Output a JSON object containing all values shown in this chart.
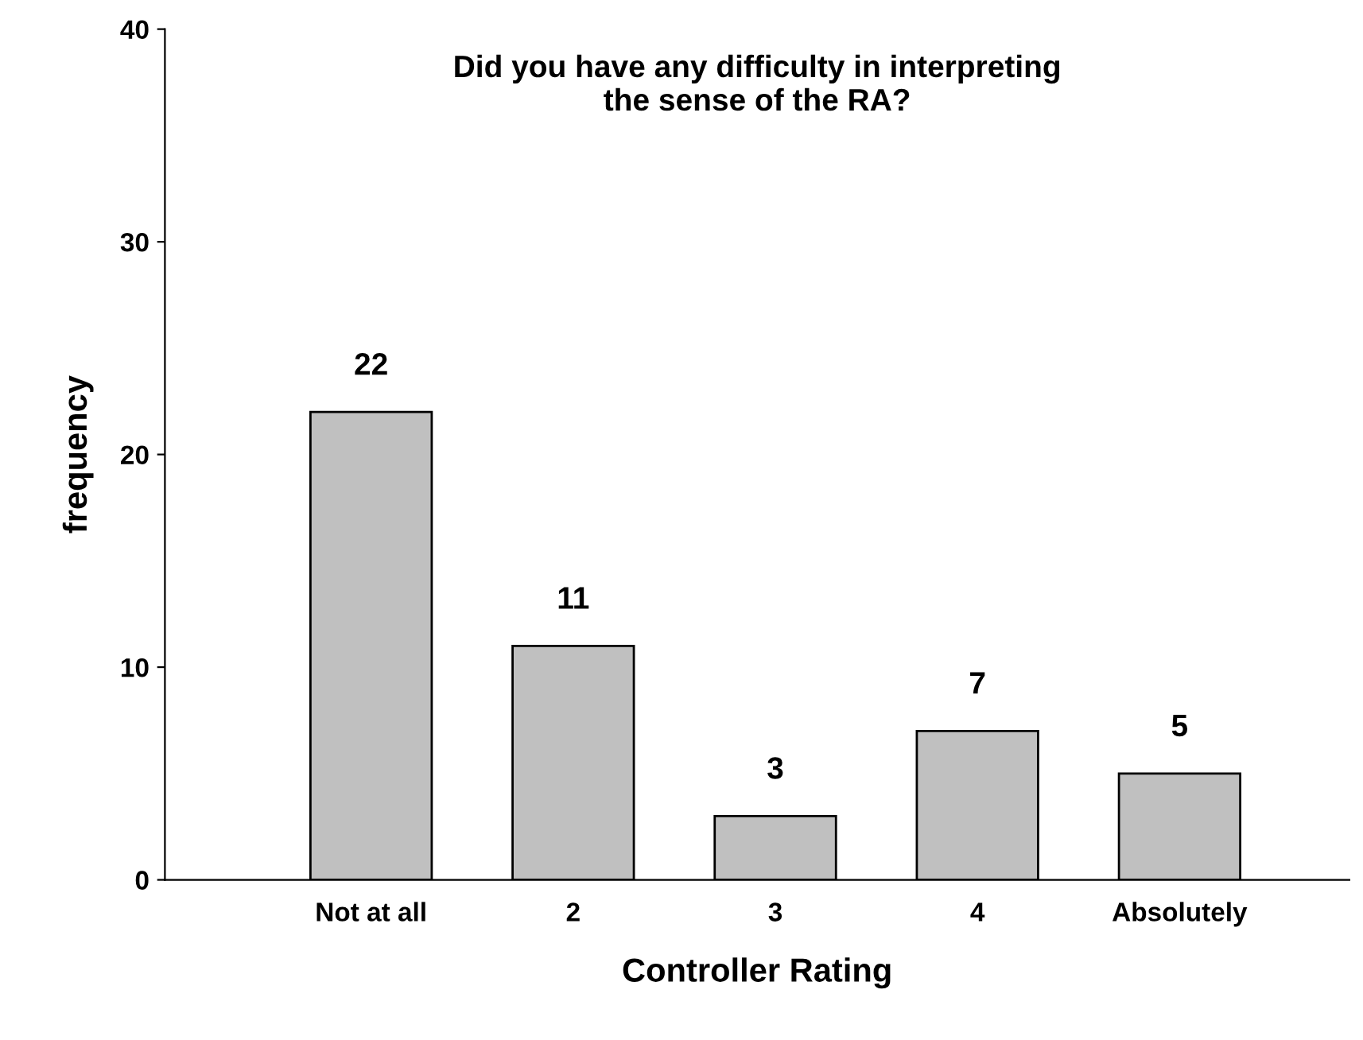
{
  "chart_data": {
    "type": "bar",
    "title": "Did you have any difficulty in interpreting\nthe sense of the RA?",
    "xlabel": "Controller Rating",
    "ylabel": "frequency",
    "categories": [
      "Not at all",
      "2",
      "3",
      "4",
      "Absolutely"
    ],
    "values": [
      22,
      11,
      3,
      7,
      5
    ],
    "color": "#c0c0c0",
    "ylim": [
      0,
      40
    ],
    "yticks": [
      0,
      10,
      20,
      30,
      40
    ],
    "grid": false,
    "data_labels": true
  }
}
